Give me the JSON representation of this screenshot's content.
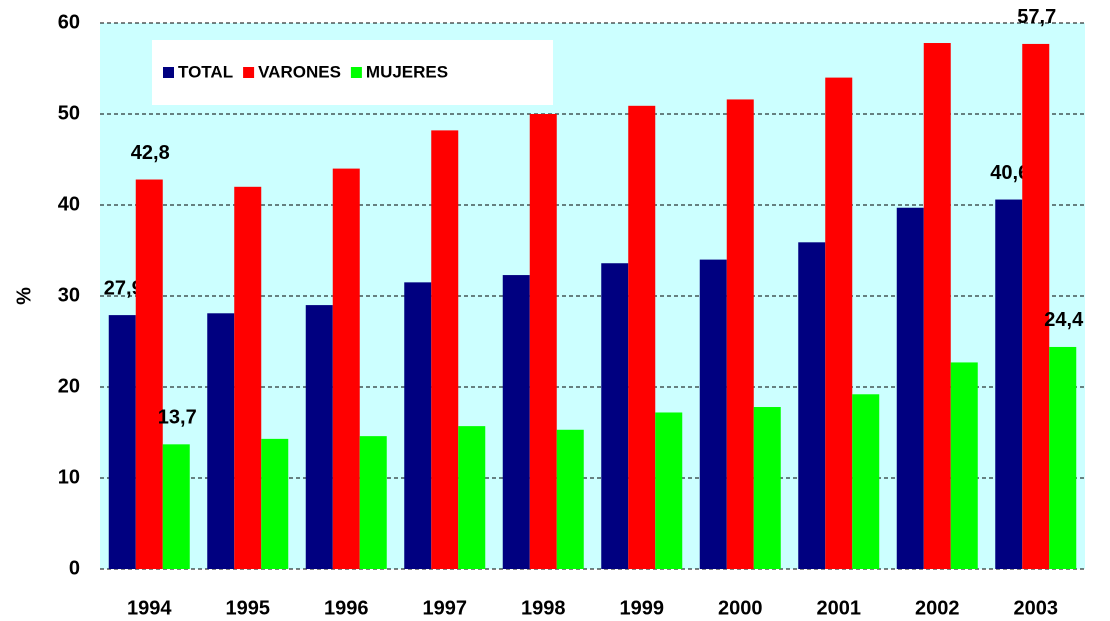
{
  "chart_data": {
    "type": "bar",
    "ylabel": "%",
    "categories": [
      "1994",
      "1995",
      "1996",
      "1997",
      "1998",
      "1999",
      "2000",
      "2001",
      "2002",
      "2003"
    ],
    "series": [
      {
        "name": "TOTAL",
        "color": "#000080",
        "values": [
          27.9,
          28.1,
          29.0,
          31.5,
          32.3,
          33.6,
          34.0,
          35.9,
          39.7,
          40.6
        ],
        "value_labels": [
          "27,9",
          null,
          null,
          null,
          null,
          null,
          null,
          null,
          null,
          "40,6"
        ]
      },
      {
        "name": "VARONES",
        "color": "#ff0000",
        "values": [
          42.8,
          42.0,
          44.0,
          48.2,
          50.0,
          50.9,
          51.6,
          54.0,
          57.8,
          57.7
        ],
        "value_labels": [
          "42,8",
          null,
          null,
          null,
          null,
          null,
          null,
          null,
          null,
          "57,7"
        ]
      },
      {
        "name": "MUJERES",
        "color": "#00ff00",
        "values": [
          13.7,
          14.3,
          14.6,
          15.7,
          15.3,
          17.2,
          17.8,
          19.2,
          22.7,
          24.4
        ],
        "value_labels": [
          "13,7",
          null,
          null,
          null,
          null,
          null,
          null,
          null,
          null,
          "24,4"
        ]
      }
    ],
    "ylim": [
      0,
      60
    ],
    "yticks": [
      0,
      10,
      20,
      30,
      40,
      50,
      60
    ],
    "grid": true,
    "legend": "top-left",
    "background": "#ccffff"
  }
}
